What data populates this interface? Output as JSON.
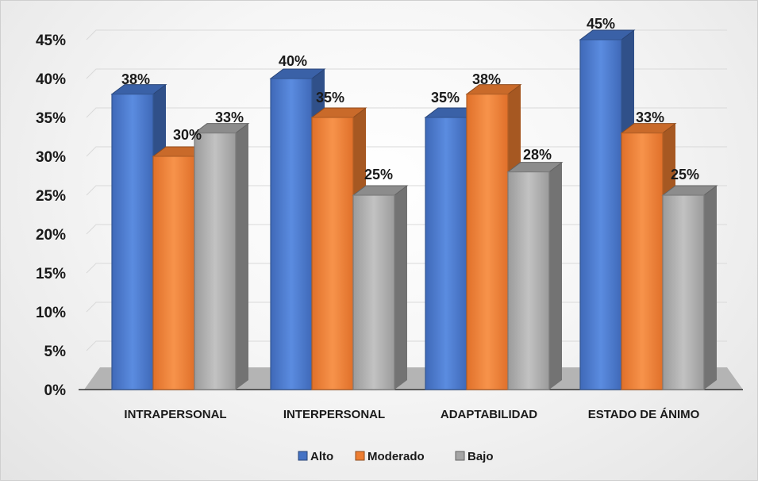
{
  "chart_data": {
    "type": "bar",
    "categories": [
      "INTRAPERSONAL",
      "INTERPERSONAL",
      "ADAPTABILIDAD",
      "ESTADO DE ÁNIMO"
    ],
    "series": [
      {
        "name": "Alto",
        "values": [
          38,
          40,
          35,
          45
        ],
        "labels": [
          "38%",
          "40%",
          "35%",
          "45%"
        ],
        "color": "#4472C4"
      },
      {
        "name": "Moderado",
        "values": [
          30,
          35,
          38,
          33
        ],
        "labels": [
          "30%",
          "35%",
          "38%",
          "33%"
        ],
        "color": "#ED7D31"
      },
      {
        "name": "Bajo",
        "values": [
          33,
          25,
          28,
          25
        ],
        "labels": [
          "33%",
          "25%",
          "28%",
          "25%"
        ],
        "color": "#A5A5A5"
      }
    ],
    "yticks": [
      "0%",
      "5%",
      "10%",
      "15%",
      "20%",
      "25%",
      "30%",
      "35%",
      "40%",
      "45%"
    ],
    "ylim": [
      0,
      45
    ],
    "grid": true,
    "legend": "bottom",
    "style": "3d-clustered-column"
  }
}
